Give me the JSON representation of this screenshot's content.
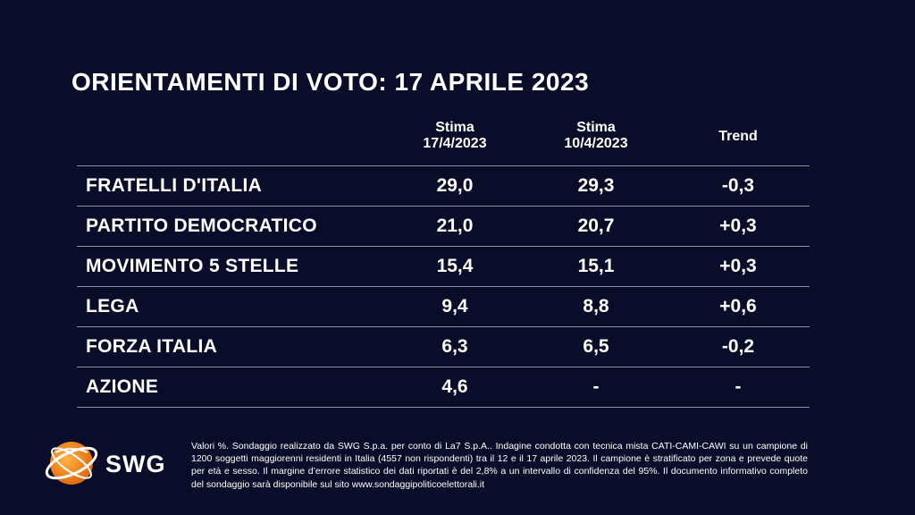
{
  "title": "ORIENTAMENTI DI VOTO: 17 APRILE 2023",
  "columns": {
    "c1_line1": "Stima",
    "c1_line2": "17/4/2023",
    "c2_line1": "Stima",
    "c2_line2": "10/4/2023",
    "c3": "Trend"
  },
  "rows": [
    {
      "party": "FRATELLI D'ITALIA",
      "current": "29,0",
      "previous": "29,3",
      "trend": "-0,3"
    },
    {
      "party": "PARTITO DEMOCRATICO",
      "current": "21,0",
      "previous": "20,7",
      "trend": "+0,3"
    },
    {
      "party": "MOVIMENTO 5 STELLE",
      "current": "15,4",
      "previous": "15,1",
      "trend": "+0,3"
    },
    {
      "party": "LEGA",
      "current": "9,4",
      "previous": "8,8",
      "trend": "+0,6"
    },
    {
      "party": "FORZA ITALIA",
      "current": "6,3",
      "previous": "6,5",
      "trend": "-0,2"
    },
    {
      "party": "AZIONE",
      "current": "4,6",
      "previous": "-",
      "trend": "-"
    }
  ],
  "logo": {
    "text": "SWG",
    "icon": "globe-icon",
    "color": "#f08a1c"
  },
  "note": "Valori %. Sondaggio realizzato da SWG S.p.a. per conto di La7 S.p.A.. Indagine condotta con tecnica mista CATI-CAMI-CAWI su un campione di 1200 soggetti maggiorenni residenti in Italia (4557 non rispondenti) tra il 12 e il 17 aprile 2023. Il campione è stratificato per zona e prevede quote per età e sesso. Il margine d’errore statistico dei dati riportati è del 2,8% a un intervallo di confidenza del 95%. Il documento informativo completo del sondaggio sarà disponibile sul sito www.sondaggipoliticoelettorali.it"
}
